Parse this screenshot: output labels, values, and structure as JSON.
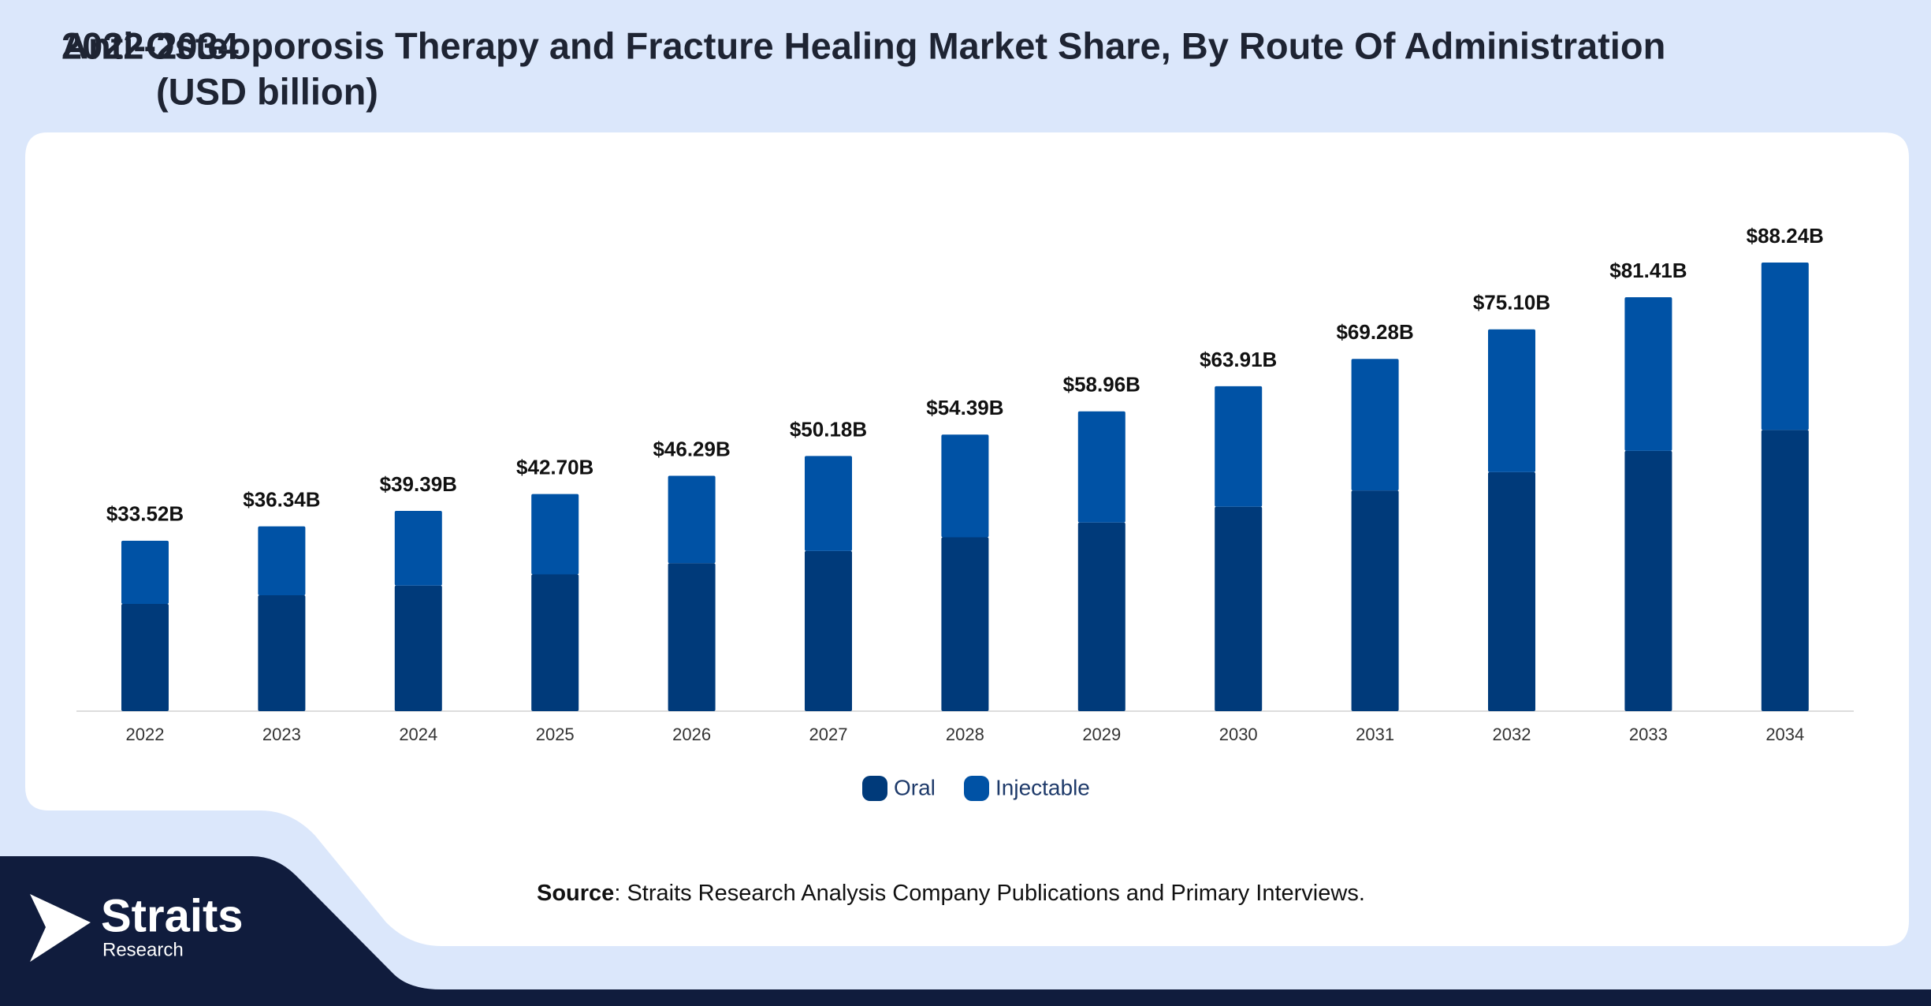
{
  "chart_data": {
    "type": "stacked_bar",
    "title": [
      "Anti-Osteoporosis Therapy and Fracture Healing Market Share, By Route Of Administration",
      "(USD billion)"
    ],
    "subtitle": "2022-2034",
    "categories": [
      "2022",
      "2023",
      "2024",
      "2025",
      "2026",
      "2027",
      "2028",
      "2029",
      "2030",
      "2031",
      "2032",
      "2033",
      "2034"
    ],
    "series": [
      {
        "name": "Oral",
        "color": "#003a7a",
        "values": [
          21.1,
          22.8,
          24.7,
          26.9,
          29.1,
          31.5,
          34.2,
          37.1,
          40.2,
          43.4,
          47.0,
          51.2,
          55.3
        ]
      },
      {
        "name": "Injectable",
        "color": "#0052a5",
        "values": [
          12.42,
          13.54,
          14.69,
          15.8,
          17.19,
          18.68,
          20.19,
          21.86,
          23.71,
          25.88,
          28.1,
          30.21,
          32.94
        ]
      }
    ],
    "totals": {
      "values": [
        33.52,
        36.34,
        39.39,
        42.7,
        46.29,
        50.18,
        54.39,
        58.96,
        63.91,
        69.28,
        75.1,
        81.41,
        88.24
      ],
      "value_labels": [
        "$33.52B",
        "$36.34B",
        "$39.39B",
        "$42.70B",
        "$46.29B",
        "$50.18B",
        "$54.39B",
        "$58.96B",
        "$63.91B",
        "$69.28B",
        "$75.10B",
        "$81.41B",
        "$88.24B"
      ]
    },
    "legend": "bottom",
    "source": {
      "label": "Source",
      "text": ": Straits Research Analysis Company Publications and Primary Interviews."
    },
    "logo": {
      "name": "Straits",
      "sub": "Research"
    }
  }
}
